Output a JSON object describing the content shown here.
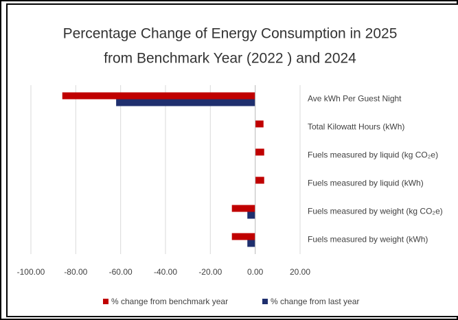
{
  "chart_data": {
    "type": "hbar",
    "title": [
      "Percentage Change of Energy Consumption in 2025",
      "from Benchmark Year (2022 ) and 2024"
    ],
    "categories": [
      "Ave kWh Per Guest Night",
      "Total Kilowatt Hours (kWh)",
      "Fuels measured by liquid (kg CO₂e)",
      "Fuels measured by liquid (kWh)",
      "Fuels measured by weight (kg CO₂e)",
      "Fuels measured by weight (kWh)"
    ],
    "series": [
      {
        "name": "% change from benchmark year",
        "color": "#c00000",
        "values": [
          -86,
          3.7,
          4,
          4,
          -10.4,
          -10.4
        ]
      },
      {
        "name": "% change from last year",
        "color": "#1f2f6e",
        "values": [
          -62,
          0,
          0,
          0,
          -3.5,
          -3.5
        ]
      }
    ],
    "xlim": [
      -100,
      20
    ],
    "xticks": [
      {
        "value": -100,
        "label": "-100.00"
      },
      {
        "value": -80,
        "label": "-80.00"
      },
      {
        "value": -60,
        "label": "-60.00"
      },
      {
        "value": -40,
        "label": "-40.00"
      },
      {
        "value": -20,
        "label": "-20.00"
      },
      {
        "value": 0,
        "label": "0.00"
      },
      {
        "value": 20,
        "label": "20.00"
      }
    ],
    "grid": true,
    "legend": "bottom"
  }
}
